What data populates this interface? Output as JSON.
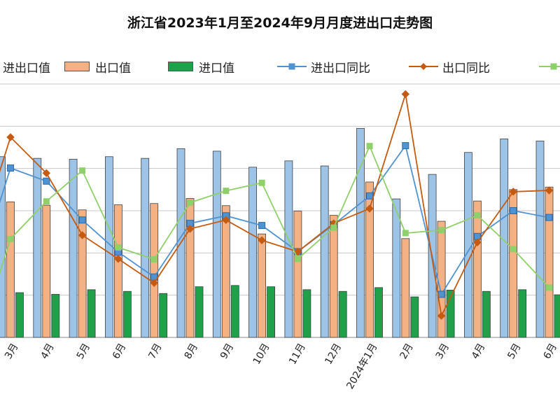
{
  "chart_data": {
    "type": "bar",
    "title": "浙江省2023年1月至2024年9月月度进出口走势图",
    "categories": [
      "3月",
      "4月",
      "5月",
      "6月",
      "7月",
      "8月",
      "9月",
      "10月",
      "11月",
      "12月",
      "2024年1月",
      "2月",
      "3月",
      "4月",
      "5月",
      "6月"
    ],
    "series": [
      {
        "name": "进出口值",
        "kind": "bar",
        "color": "#9dc3e6",
        "values": [
          4280,
          4240,
          4220,
          4280,
          4240,
          4470,
          4410,
          4030,
          4180,
          4060,
          4950,
          3280,
          3860,
          4380,
          4700,
          4650
        ]
      },
      {
        "name": "出口值",
        "kind": "bar",
        "color": "#f4b183",
        "values": [
          3210,
          3130,
          3020,
          3140,
          3170,
          3290,
          3120,
          2450,
          2990,
          2890,
          3680,
          2340,
          2750,
          3230,
          3500,
          3560
        ]
      },
      {
        "name": "进口值",
        "kind": "bar",
        "color": "#1fa049",
        "values": [
          1060,
          1020,
          1130,
          1090,
          1040,
          1200,
          1230,
          1200,
          1130,
          1090,
          1180,
          960,
          1120,
          1090,
          1130,
          1010
        ]
      },
      {
        "name": "进出口同比",
        "kind": "line",
        "color": "#4f93d2",
        "marker": "square",
        "values": [
          4010,
          3700,
          2780,
          2020,
          1430,
          2700,
          2880,
          2650,
          2030,
          2670,
          3350,
          4540,
          1020,
          2390,
          3000,
          2840
        ]
      },
      {
        "name": "出口同比",
        "kind": "line",
        "color": "#c55a11",
        "marker": "diamond",
        "values": [
          4740,
          3890,
          2420,
          1860,
          1290,
          2570,
          2780,
          2300,
          2030,
          2700,
          3050,
          5760,
          510,
          2250,
          3450,
          3480
        ]
      },
      {
        "name": "",
        "kind": "line",
        "color": "#8fd06a",
        "marker": "square",
        "values": [
          2330,
          3220,
          3950,
          2130,
          1850,
          3190,
          3470,
          3660,
          1860,
          2600,
          4530,
          2470,
          2540,
          2890,
          2090,
          1180
        ]
      }
    ],
    "ylim": [
      0,
      6000
    ],
    "grid": true,
    "legend_position": "top"
  },
  "legend": [
    {
      "label": "进出口值",
      "kind": "bar",
      "color": "#9dc3e6"
    },
    {
      "label": "出口值",
      "kind": "bar",
      "color": "#f4b183"
    },
    {
      "label": "进口值",
      "kind": "bar",
      "color": "#1fa049"
    },
    {
      "label": "进出口同比",
      "kind": "line",
      "color": "#4f93d2",
      "marker": "square"
    },
    {
      "label": "出口同比",
      "kind": "line",
      "color": "#c55a11",
      "marker": "diamond"
    },
    {
      "label": "",
      "kind": "line",
      "color": "#8fd06a",
      "marker": "square"
    }
  ]
}
